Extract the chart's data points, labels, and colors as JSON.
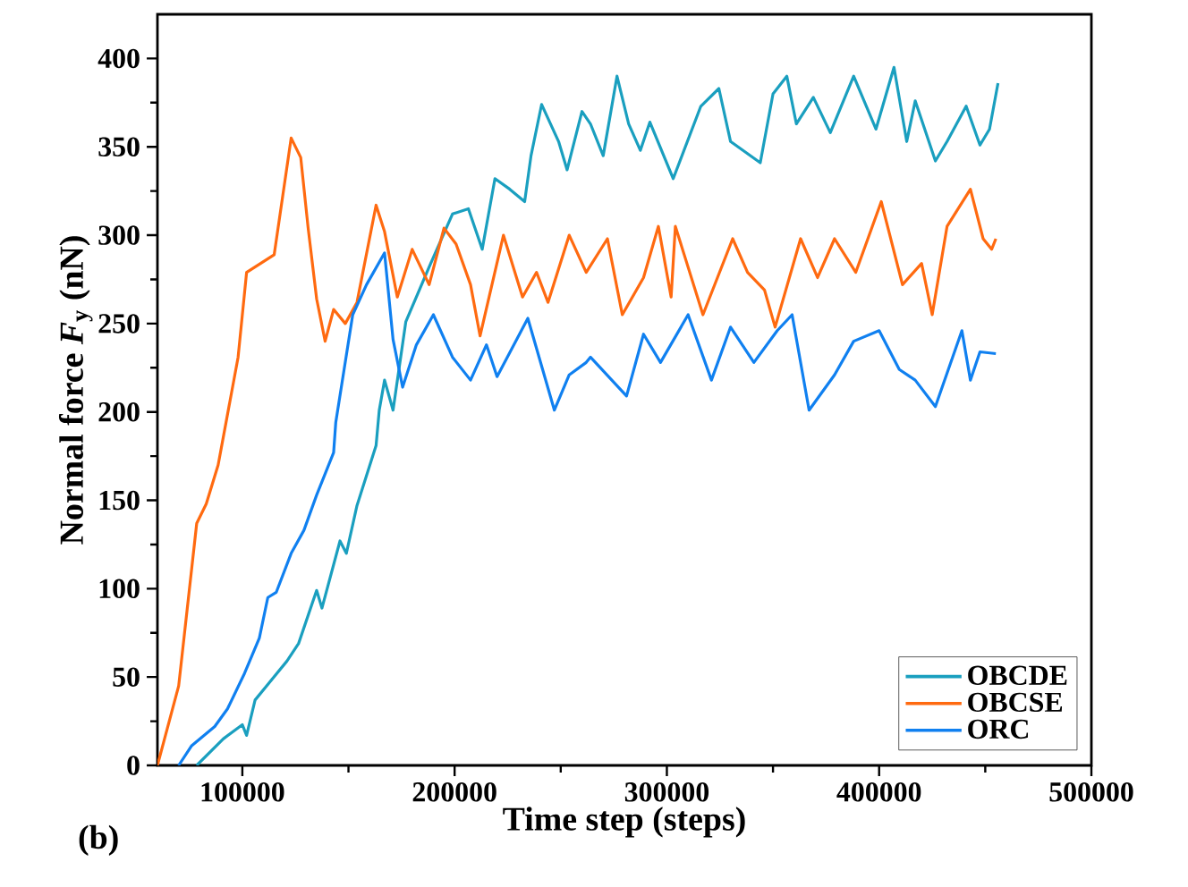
{
  "chart_data": {
    "type": "line",
    "xlabel": "Time step (steps)",
    "ylabel": "Normal force *F*$_{y}$ (nN)",
    "annotations": [
      "(b)"
    ],
    "xlim": [
      60000,
      500000
    ],
    "ylim": [
      0,
      425
    ],
    "xticks": [
      100000,
      200000,
      300000,
      400000,
      500000
    ],
    "yticks": [
      0,
      50,
      100,
      150,
      200,
      250,
      300,
      350,
      400
    ],
    "legend": "bottom right",
    "grid": false,
    "marker": "none",
    "series": [
      {
        "name": "OBCDE",
        "color": "#1a9fbf",
        "x": [
          78500,
          91000,
          100000,
          102000,
          106000,
          121000,
          126500,
          135000,
          137500,
          146000,
          149000,
          154000,
          163000,
          164500,
          167000,
          171000,
          177000,
          188000,
          199000,
          206500,
          213000,
          219000,
          226000,
          233000,
          236000,
          241000,
          249000,
          253000,
          260000,
          264000,
          270000,
          276500,
          282000,
          287500,
          292000,
          303000,
          316000,
          324500,
          330000,
          344000,
          350000,
          356500,
          361000,
          369000,
          377000,
          388000,
          398500,
          407000,
          413000,
          417000,
          426500,
          432000,
          441000,
          447500,
          452000,
          456000
        ],
        "values": [
          0,
          15,
          23,
          17,
          37,
          59,
          69,
          99,
          89,
          127,
          120,
          147,
          181,
          201,
          218,
          201,
          251,
          282,
          312,
          315,
          292,
          332,
          326,
          319,
          345,
          374,
          353,
          337,
          370,
          363,
          345,
          390,
          363,
          348,
          364,
          332,
          373,
          383,
          353,
          341,
          380,
          390,
          363,
          378,
          358,
          390,
          360,
          395,
          353,
          376,
          342,
          353,
          373,
          351,
          360,
          386
        ]
      },
      {
        "name": "OBCSE",
        "color": "#ff6a10",
        "x": [
          60000,
          70000,
          78500,
          83000,
          88600,
          98000,
          102000,
          115000,
          123000,
          127500,
          131000,
          135000,
          139000,
          143000,
          148500,
          154000,
          163000,
          167000,
          173000,
          180000,
          188000,
          195000,
          200700,
          207500,
          212000,
          223000,
          232000,
          238600,
          244000,
          254000,
          262000,
          272000,
          279000,
          289000,
          296000,
          302000,
          304000,
          317000,
          331000,
          338000,
          346000,
          351000,
          363000,
          371000,
          379000,
          389000,
          401000,
          411000,
          420000,
          425000,
          432000,
          443000,
          449000,
          453000,
          455000
        ],
        "values": [
          0,
          45,
          137,
          148,
          170,
          231,
          279,
          289,
          355,
          344,
          304,
          264,
          240,
          258,
          250,
          262,
          317,
          302,
          265,
          292,
          272,
          304,
          295,
          272,
          243,
          300,
          265,
          279,
          262,
          300,
          279,
          298,
          255,
          276,
          305,
          265,
          305,
          255,
          298,
          279,
          269,
          248,
          298,
          276,
          298,
          279,
          319,
          272,
          284,
          255,
          305,
          326,
          298,
          292,
          298
        ]
      },
      {
        "name": "ORC",
        "color": "#1080f0",
        "x": [
          70000,
          76000,
          87000,
          93000,
          101000,
          108000,
          112000,
          116000,
          123000,
          129000,
          135000,
          143000,
          144000,
          152000,
          158500,
          167000,
          171000,
          175500,
          182000,
          190000,
          199000,
          207500,
          215000,
          220000,
          234500,
          247000,
          254000,
          262000,
          264000,
          281000,
          289000,
          297000,
          310000,
          321000,
          330000,
          341000,
          352000,
          359000,
          367000,
          379000,
          388000,
          400000,
          409500,
          417000,
          426500,
          439000,
          443000,
          447500,
          455000
        ],
        "values": [
          0,
          11,
          22,
          32,
          52,
          72,
          95,
          98,
          120,
          133,
          153,
          177,
          194,
          255,
          272,
          290,
          241,
          214,
          238,
          255,
          231,
          218,
          238,
          220,
          253,
          201,
          221,
          228,
          231,
          209,
          244,
          228,
          255,
          218,
          248,
          228,
          246,
          255,
          201,
          221,
          240,
          246,
          224,
          218,
          203,
          246,
          218,
          234,
          233
        ]
      }
    ]
  }
}
